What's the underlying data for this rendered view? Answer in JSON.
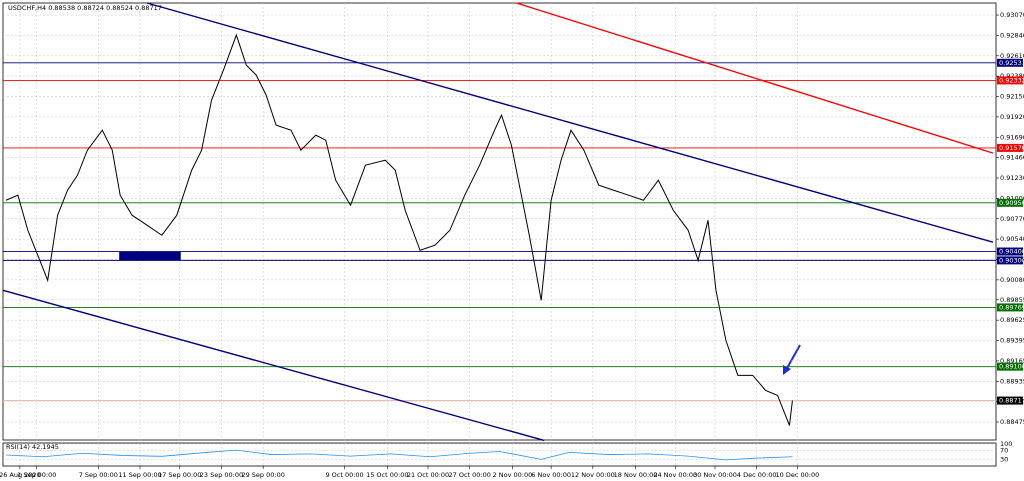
{
  "chart_data": {
    "type": "line",
    "title": "USDCHF,H4  0.88538 0.88724 0.88524 0.88717",
    "xlim": [
      0,
      100
    ],
    "ylim": [
      0.88272,
      0.93206
    ],
    "grid": true,
    "color": "#000000",
    "x": [
      0.3,
      1.5,
      2.5,
      3.5,
      4.5,
      5.5,
      6.5,
      7.5,
      8.5,
      10,
      11,
      11.8,
      13,
      14.5,
      16,
      17.5,
      19,
      20,
      21,
      22.2,
      23.5,
      24.5,
      25.5,
      26.5,
      27.5,
      29,
      30,
      31.5,
      32.5,
      33.5,
      35,
      36.5,
      38.5,
      39.5,
      40.5,
      42,
      43.5,
      45,
      46.5,
      48,
      49.5,
      50.2,
      51.2,
      52,
      53,
      54.2,
      55.2,
      56.2,
      57.2,
      58.5,
      60,
      61.5,
      63,
      64.5,
      66,
      67.5,
      69,
      70,
      71,
      71.8,
      72.8,
      74,
      75.5,
      76.8,
      78,
      79.2,
      79.5
    ],
    "values": [
      0.90979,
      0.91036,
      0.9064,
      0.90358,
      0.90075,
      0.9081,
      0.91092,
      0.91262,
      0.91544,
      0.9177,
      0.91544,
      0.91036,
      0.9081,
      0.90697,
      0.90584,
      0.9081,
      0.91318,
      0.91544,
      0.92109,
      0.92448,
      0.92844,
      0.92505,
      0.92392,
      0.92166,
      0.91827,
      0.9177,
      0.91544,
      0.91714,
      0.91657,
      0.91205,
      0.90923,
      0.91375,
      0.91431,
      0.91318,
      0.90866,
      0.90414,
      0.90471,
      0.9064,
      0.91036,
      0.91375,
      0.9177,
      0.9194,
      0.91601,
      0.91149,
      0.90584,
      0.89849,
      0.90979,
      0.91431,
      0.9177,
      0.91544,
      0.91149,
      0.91092,
      0.91036,
      0.90979,
      0.91205,
      0.90866,
      0.9064,
      0.90301,
      0.90753,
      0.89962,
      0.89397,
      0.89002,
      0.89002,
      0.88832,
      0.88776,
      0.88437,
      0.88717
    ],
    "yticks": [
      {
        "value": 0.9307,
        "label": "0.93070"
      },
      {
        "value": 0.9284,
        "label": "0.92840"
      },
      {
        "value": 0.9261,
        "label": "0.92610"
      },
      {
        "value": 0.9238,
        "label": "0.92380"
      },
      {
        "value": 0.9215,
        "label": "0.92150"
      },
      {
        "value": 0.9192,
        "label": "0.91920"
      },
      {
        "value": 0.9169,
        "label": "0.91690"
      },
      {
        "value": 0.9146,
        "label": "0.91460"
      },
      {
        "value": 0.9123,
        "label": "0.91230"
      },
      {
        "value": 0.91,
        "label": "0.91000"
      },
      {
        "value": 0.9077,
        "label": "0.90770"
      },
      {
        "value": 0.9054,
        "label": "0.90540"
      },
      {
        "value": 0.9031,
        "label": "0.90310"
      },
      {
        "value": 0.9008,
        "label": "0.90080"
      },
      {
        "value": 0.89855,
        "label": "0.89855"
      },
      {
        "value": 0.89625,
        "label": "0.89625"
      },
      {
        "value": 0.89395,
        "label": "0.89395"
      },
      {
        "value": 0.89165,
        "label": "0.89165"
      },
      {
        "value": 0.88935,
        "label": "0.88935"
      },
      {
        "value": 0.88705,
        "label": "0.88705"
      },
      {
        "value": 0.88475,
        "label": "0.88475"
      }
    ],
    "xticks": [
      {
        "value": 1.7,
        "label": "26 Aug 2020"
      },
      {
        "value": 3.4,
        "label": "1 Sep 00:00"
      },
      {
        "value": 9.6,
        "label": "7 Sep 00:00"
      },
      {
        "value": 13.8,
        "label": "11 Sep 00:00"
      },
      {
        "value": 17.8,
        "label": "17 Sep 00:00"
      },
      {
        "value": 22,
        "label": "23 Sep 00:00"
      },
      {
        "value": 26.2,
        "label": "29 Sep 00:00"
      },
      {
        "value": 34.4,
        "label": "9 Oct 00:00"
      },
      {
        "value": 38.7,
        "label": "15 Oct 00:00"
      },
      {
        "value": 42.8,
        "label": "21 Oct 00:00"
      },
      {
        "value": 47,
        "label": "27 Oct 00:00"
      },
      {
        "value": 51.3,
        "label": "2 Nov 00:00"
      },
      {
        "value": 55.2,
        "label": "6 Nov 00:00"
      },
      {
        "value": 59.4,
        "label": "12 Nov 00:00"
      },
      {
        "value": 63.7,
        "label": "18 Nov 00:00"
      },
      {
        "value": 67.7,
        "label": "24 Nov 00:00"
      },
      {
        "value": 71.7,
        "label": "30 Nov 00:00"
      },
      {
        "value": 75.9,
        "label": "4 Dec 00:00"
      },
      {
        "value": 80,
        "label": "10 Dec 00:00"
      }
    ],
    "levels": [
      {
        "value": 0.92531,
        "label": "0.92531",
        "color": "#000080",
        "label_color": "#000080"
      },
      {
        "value": 0.92332,
        "label": "0.92332",
        "color": "#ff0000",
        "label_color": "#ff0000"
      },
      {
        "value": 0.9157,
        "label": "0.91570",
        "color": "#ff0000",
        "label_color": "#ff0000"
      },
      {
        "value": 0.9095,
        "label": "0.90950",
        "color": "#007000",
        "label_color": "#007000"
      },
      {
        "value": 0.904,
        "label": "0.90400",
        "color": "#000080",
        "label_color": "#000080"
      },
      {
        "value": 0.903,
        "label": "0.90300",
        "color": "#000080",
        "label_color": "#000080"
      },
      {
        "value": 0.89769,
        "label": "0.89769",
        "color": "#007000",
        "label_color": "#007000"
      },
      {
        "value": 0.891,
        "label": "0.89100",
        "color": "#007000",
        "label_color": "#007000"
      },
      {
        "value": 0.88717,
        "label": "0.88717",
        "color": "#f0b0a0",
        "label_color": "#000000"
      }
    ],
    "trendlines": [
      {
        "x": [
          14.5,
          99.7
        ],
        "values": [
          0.93206,
          0.90505
        ],
        "color": "#000080"
      },
      {
        "x": [
          0,
          54.5
        ],
        "values": [
          0.89962,
          0.88267
        ],
        "color": "#000080"
      },
      {
        "x": [
          51.7,
          99.7
        ],
        "values": [
          0.93206,
          0.91511
        ],
        "color": "#ff0000"
      }
    ],
    "boxes": [
      {
        "x": [
          11.7,
          17.9
        ],
        "values": [
          0.904,
          0.903
        ],
        "color": "#000080"
      }
    ],
    "indicator": {
      "title": "RSI(14) 42.1945",
      "ylim": [
        0,
        100
      ],
      "yticks": [
        100,
        70,
        30
      ],
      "color": "#1e90ff",
      "x": [
        0.3,
        4,
        8,
        12,
        16,
        20,
        23.5,
        27,
        31,
        35,
        39,
        43,
        47,
        50,
        54.2,
        57,
        61,
        65,
        69,
        72.8,
        76,
        79.5
      ],
      "values": [
        50,
        42,
        58,
        48,
        44,
        60,
        72,
        52,
        55,
        45,
        55,
        42,
        58,
        66,
        30,
        62,
        52,
        55,
        45,
        28,
        36,
        42
      ]
    }
  }
}
